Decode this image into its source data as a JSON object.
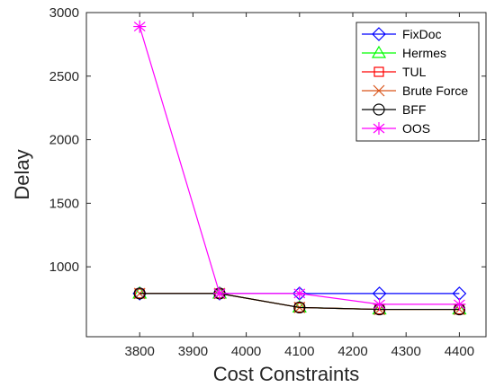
{
  "chart_data": {
    "type": "line",
    "xlabel": "Cost Constraints",
    "ylabel": "Delay",
    "xlim": [
      3700,
      4450
    ],
    "ylim": [
      450,
      3000
    ],
    "x": [
      3800,
      3950,
      4100,
      4250,
      4400
    ],
    "x_ticks": [
      3800,
      3900,
      4000,
      4100,
      4200,
      4300,
      4400
    ],
    "y_ticks": [
      1000,
      1500,
      2000,
      2500,
      3000
    ],
    "grid": false,
    "legend_position": "top-right",
    "series": [
      {
        "name": "FixDoc",
        "color": "#0000ff",
        "marker": "diamond",
        "values": [
          790,
          790,
          790,
          790,
          790
        ]
      },
      {
        "name": "Hermes",
        "color": "#00ff00",
        "marker": "triangle",
        "values": [
          790,
          790,
          680,
          665,
          665
        ]
      },
      {
        "name": "TUL",
        "color": "#ff0000",
        "marker": "square",
        "values": [
          790,
          790,
          680,
          665,
          665
        ]
      },
      {
        "name": "Brute Force",
        "color": "#d95319",
        "marker": "x",
        "values": [
          790,
          790,
          680,
          665,
          665
        ]
      },
      {
        "name": "BFF",
        "color": "#000000",
        "marker": "circle",
        "values": [
          790,
          790,
          680,
          665,
          665
        ]
      },
      {
        "name": "OOS",
        "color": "#ff00ff",
        "marker": "asterisk",
        "values": [
          2890,
          790,
          790,
          705,
          705
        ]
      }
    ]
  }
}
